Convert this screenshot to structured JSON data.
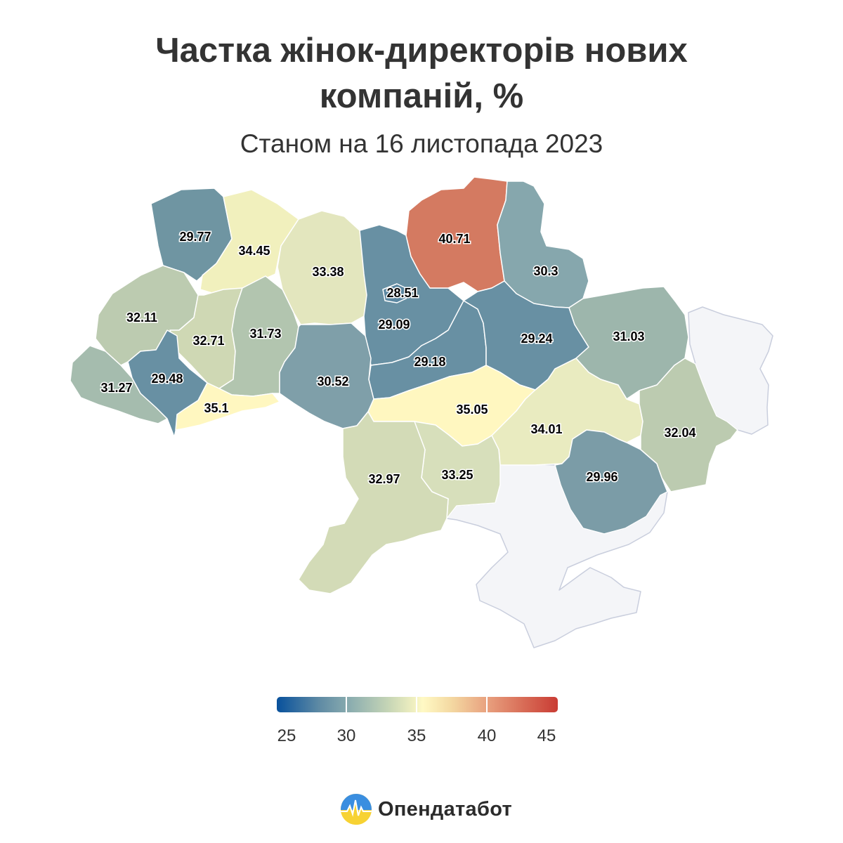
{
  "header": {
    "title_line1": "Частка жінок-директорів нових",
    "title_line2": "компаній, %",
    "subtitle": "Станом на 16 листопада 2023"
  },
  "legend": {
    "ticks": [
      "25",
      "30",
      "35",
      "40",
      "45"
    ],
    "min": 25,
    "max": 45,
    "color_stops": [
      "#08519c",
      "#5e8aa4",
      "#8fb0b0",
      "#c7d6b6",
      "#fff9c4",
      "#f4d9a2",
      "#e8a07e",
      "#d86b56",
      "#c93c34"
    ]
  },
  "map": {
    "regions": [
      {
        "id": "volyn",
        "value": "29.77",
        "color": "#6f95a2"
      },
      {
        "id": "rivne",
        "value": "34.45",
        "color": "#f1f0bd"
      },
      {
        "id": "zhytomyr",
        "value": "33.38",
        "color": "#e3e6be"
      },
      {
        "id": "kyiv-oblast",
        "value": "29.09",
        "color": "#6890a3"
      },
      {
        "id": "kyiv-city",
        "value": "28.51",
        "color": "#5b87a1"
      },
      {
        "id": "chernihiv",
        "value": "40.71",
        "color": "#d47a61"
      },
      {
        "id": "sumy",
        "value": "30.3",
        "color": "#86a7ad"
      },
      {
        "id": "lviv",
        "value": "32.11",
        "color": "#bccbb0"
      },
      {
        "id": "ternopil",
        "value": "32.71",
        "color": "#cfd8b4"
      },
      {
        "id": "khmelnytskyi",
        "value": "31.73",
        "color": "#b2c5af"
      },
      {
        "id": "vinnytsia",
        "value": "30.52",
        "color": "#7f9fa9"
      },
      {
        "id": "cherkasy",
        "value": "29.18",
        "color": "#6890a3"
      },
      {
        "id": "poltava",
        "value": "29.24",
        "color": "#6890a3"
      },
      {
        "id": "kharkiv",
        "value": "31.03",
        "color": "#9db6ac"
      },
      {
        "id": "zakarpattia",
        "value": "31.27",
        "color": "#a5bcae"
      },
      {
        "id": "ivano-frankivsk",
        "value": "29.48",
        "color": "#6890a3"
      },
      {
        "id": "chernivtsi",
        "value": "35.1",
        "color": "#fff7c0"
      },
      {
        "id": "kirovohrad",
        "value": "35.05",
        "color": "#fff7c0"
      },
      {
        "id": "dnipropetrovsk",
        "value": "34.01",
        "color": "#e9ebc0"
      },
      {
        "id": "luhansk",
        "value": "32.04",
        "color": "#bccbb0"
      },
      {
        "id": "donetsk",
        "value": "29.96",
        "color": "#7b9ca7"
      },
      {
        "id": "mykolaiv",
        "value": "33.25",
        "color": "#d7dfbb"
      },
      {
        "id": "odesa",
        "value": "32.97",
        "color": "#d3dbb7"
      }
    ]
  },
  "brand": {
    "name": "Опендатабот",
    "logo_icon": "opendatabot-logo-icon"
  }
}
